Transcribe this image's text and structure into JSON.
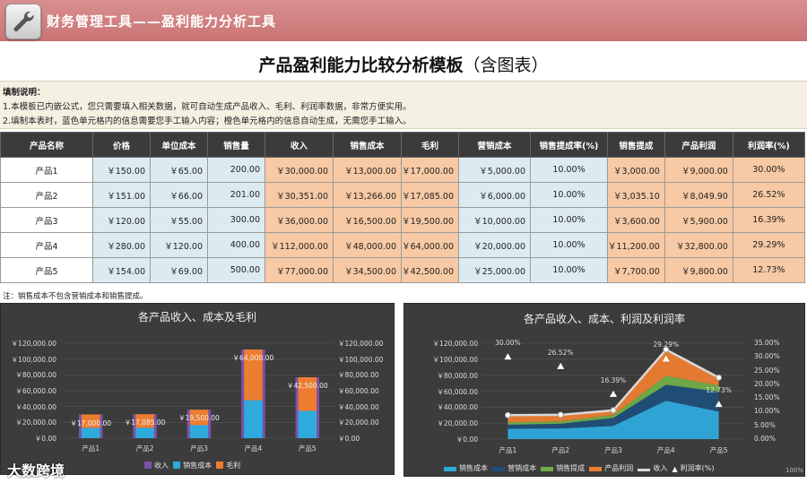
{
  "banner": {
    "title": "财务管理工具——盈利能力分析工具",
    "icon": "wrench-icon"
  },
  "main_title": {
    "bold": "产品盈利能力比较分析模板",
    "normal": "（含图表）"
  },
  "instructions": {
    "heading": "填制说明：",
    "line1": "1.本模板已内嵌公式，您只需要填入相关数据，就可自动生成产品收入、毛利、利润率数据，非常方便实用。",
    "line2": "2.填制本表时，蓝色单元格内的信息需要您手工输入内容；橙色单元格内的信息自动生成，无需您手工输入。"
  },
  "table": {
    "headers": [
      "产品名称",
      "价格",
      "单位成本",
      "销售量",
      "收入",
      "销售成本",
      "毛利",
      "营销成本",
      "销售提成率(%)",
      "销售提成",
      "产品利润",
      "利润率(%)"
    ],
    "rows": [
      [
        "产品1",
        "￥150.00",
        "￥65.00",
        "200.00",
        "￥30,000.00",
        "￥13,000.00",
        "￥17,000.00",
        "￥5,000.00",
        "10.00%",
        "￥3,000.00",
        "￥9,000.00",
        "30.00%"
      ],
      [
        "产品2",
        "￥151.00",
        "￥66.00",
        "201.00",
        "￥30,351.00",
        "￥13,266.00",
        "￥17,085.00",
        "￥6,000.00",
        "10.00%",
        "￥3,035.10",
        "￥8,049.90",
        "26.52%"
      ],
      [
        "产品3",
        "￥120.00",
        "￥55.00",
        "300.00",
        "￥36,000.00",
        "￥16,500.00",
        "￥19,500.00",
        "￥10,000.00",
        "10.00%",
        "￥3,600.00",
        "￥5,900.00",
        "16.39%"
      ],
      [
        "产品4",
        "￥280.00",
        "￥120.00",
        "400.00",
        "￥112,000.00",
        "￥48,000.00",
        "￥64,000.00",
        "￥20,000.00",
        "10.00%",
        "￥11,200.00",
        "￥32,800.00",
        "29.29%"
      ],
      [
        "产品5",
        "￥154.00",
        "￥69.00",
        "500.00",
        "￥77,000.00",
        "￥34,500.00",
        "￥42,500.00",
        "￥25,000.00",
        "10.00%",
        "￥7,700.00",
        "￥9,800.00",
        "12.73%"
      ]
    ]
  },
  "note": "注：销售成本不包含营销成本和销售提成。",
  "colors": {
    "blue_cell": "#dcebf2",
    "orange_cell": "#f7c9a4",
    "header": "#3b3b3b",
    "banner": "#cf7d7d"
  },
  "chart_data": [
    {
      "type": "bar",
      "title": "各产品收入、成本及毛利",
      "categories": [
        "产品1",
        "产品2",
        "产品3",
        "产品4",
        "产品5"
      ],
      "series": [
        {
          "name": "收入",
          "values": [
            30000,
            30351,
            36000,
            112000,
            77000
          ],
          "color": "#7b52a8"
        },
        {
          "name": "销售成本",
          "values": [
            13000,
            13266,
            16500,
            48000,
            34500
          ],
          "color": "#2eaadc"
        },
        {
          "name": "毛利",
          "values": [
            17000,
            17085,
            19500,
            64000,
            42500
          ],
          "color": "#ed7d31"
        }
      ],
      "data_labels": [
        "￥17,000.00",
        "￥17,085.00",
        "￥19,500.00",
        "￥64,000.00",
        "￥42,500.00"
      ],
      "y_ticks": [
        "￥0.00",
        "￥20,000.00",
        "￥40,000.00",
        "￥60,000.00",
        "￥80,000.00",
        "￥100,000.00",
        "￥120,000.00"
      ],
      "ylim": [
        0,
        120000
      ],
      "legend": "bottom"
    },
    {
      "type": "area",
      "title": "各产品收入、成本、利润及利润率",
      "categories": [
        "产品1",
        "产品2",
        "产品3",
        "产品4",
        "产品5"
      ],
      "series": [
        {
          "name": "销售成本",
          "values": [
            13000,
            13266,
            16500,
            48000,
            34500
          ],
          "color": "#2eaadc"
        },
        {
          "name": "营销成本",
          "values": [
            5000,
            6000,
            10000,
            20000,
            25000
          ],
          "color": "#1f4e79"
        },
        {
          "name": "销售提成",
          "values": [
            3000,
            3035.1,
            3600,
            11200,
            7700
          ],
          "color": "#70ad47"
        },
        {
          "name": "产品利润",
          "values": [
            9000,
            8049.9,
            5900,
            32800,
            9800
          ],
          "color": "#ed7d31"
        },
        {
          "name": "收入",
          "values": [
            30000,
            30351,
            36000,
            112000,
            77000
          ],
          "color": "#d9d9d9"
        },
        {
          "name": "利润率(%)",
          "values": [
            30.0,
            26.52,
            16.39,
            29.29,
            12.73
          ],
          "color": "#ffffff"
        }
      ],
      "rate_labels": [
        "30.00%",
        "26.52%",
        "16.39%",
        "29.29%",
        "12.73%"
      ],
      "y_ticks": [
        "￥0.00",
        "￥20,000.00",
        "￥40,000.00",
        "￥60,000.00",
        "￥80,000.00",
        "￥100,000.00",
        "￥120,000.00"
      ],
      "y2_ticks": [
        "0.00%",
        "5.00%",
        "10.00%",
        "15.00%",
        "20.00%",
        "25.00%",
        "30.00%",
        "35.00%"
      ],
      "ylim": [
        0,
        120000
      ],
      "y2lim": [
        0,
        35
      ],
      "legend": "bottom"
    }
  ],
  "watermark": "大数跨境",
  "zoom_hint": "100%"
}
